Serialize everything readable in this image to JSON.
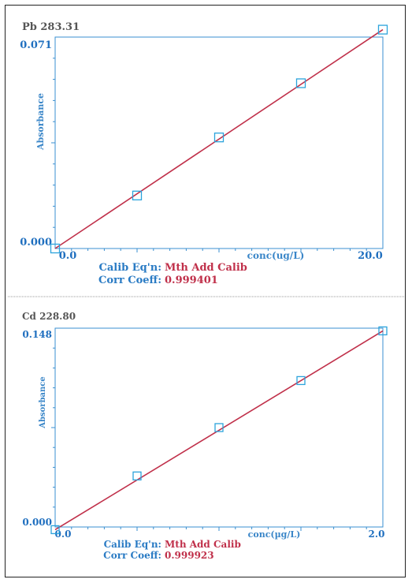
{
  "colors": {
    "axis": "#3a8fd0",
    "fit_line": "#c0304a",
    "marker": "#2ba3dc",
    "title": "#555555",
    "separator": "#999999"
  },
  "chart_data": [
    {
      "type": "scatter",
      "title": "Pb 283.31",
      "xlabel": "conc(ug/L)",
      "ylabel": "Absorbance",
      "xlim": [
        0.0,
        20.0
      ],
      "ylim": [
        0.0,
        0.071
      ],
      "x_tick_labels": [
        "0.0",
        "20.0"
      ],
      "y_tick_labels": [
        "0.071",
        "0.000"
      ],
      "calib_label": "Calib Eq'n:",
      "calib_value": "Mth Add Calib",
      "coeff_label": "Corr Coeff:",
      "coeff_value": "0.999401",
      "marker": "open-square",
      "series": [
        {
          "x": [
            0.0,
            5.0,
            10.0,
            15.0,
            20.0
          ],
          "values": [
            0.0,
            0.0178,
            0.0373,
            0.0555,
            0.0735
          ]
        }
      ],
      "fit_line": {
        "x": [
          0.0,
          20.0
        ],
        "y": [
          0.0,
          0.0735
        ]
      }
    },
    {
      "type": "scatter",
      "title": "Cd 228.80",
      "xlabel": "conc(µg/L)",
      "ylabel": "Absorbance",
      "xlim": [
        0.0,
        2.0
      ],
      "ylim": [
        0.0,
        0.148
      ],
      "x_tick_labels": [
        "0.0",
        "2.0"
      ],
      "y_tick_labels": [
        "0.148",
        "0.000"
      ],
      "calib_label": "Calib Eq'n:",
      "calib_value": "Mth Add Calib",
      "coeff_label": "Corr Coeff:",
      "coeff_value": "0.999923",
      "marker": "open-square",
      "series": [
        {
          "x": [
            0.0,
            0.5,
            1.0,
            1.5,
            2.0
          ],
          "values": [
            -0.002,
            0.038,
            0.074,
            0.109,
            0.146
          ]
        }
      ],
      "fit_line": {
        "x": [
          0.0,
          2.0
        ],
        "y": [
          -0.002,
          0.146
        ]
      }
    }
  ]
}
